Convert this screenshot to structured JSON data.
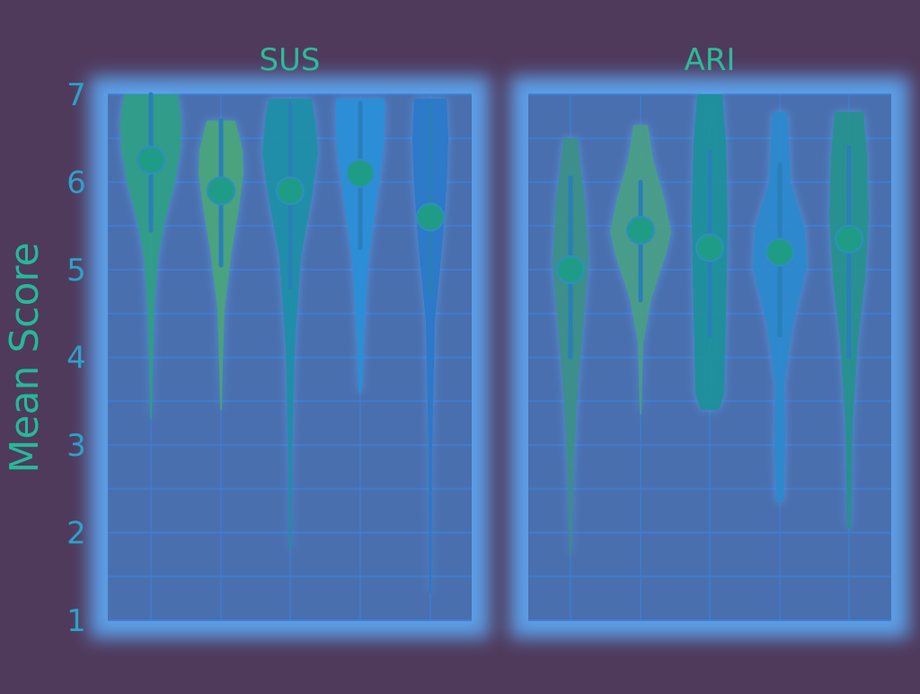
{
  "colors": {
    "background": "#4f3a5c",
    "panel": "#4a6fae",
    "glow": "#5fb0ff",
    "grid": "#3e7fd6",
    "text": "#2fa0c8",
    "title_text": "#2dba9a",
    "ylabel_text": "#26b89a",
    "violin_fills": [
      "#2f9d86",
      "#4aa37a",
      "#1f8ea6",
      "#2a8ed6",
      "#2b78c9",
      "#3b8f86",
      "#4a9d86",
      "#1d8f9a",
      "#2c88cc",
      "#27908e"
    ],
    "median_dot": "#1f9c86"
  },
  "chart_data": {
    "type": "violin",
    "ylabel": "Mean Score",
    "ylim": [
      1,
      7
    ],
    "yticks": [
      1,
      2,
      3,
      4,
      5,
      6,
      7
    ],
    "grid": true,
    "panels": [
      {
        "title": "SUS",
        "violins": [
          {
            "min": 3.3,
            "max": 7.0,
            "q1": 5.45,
            "q3": 7.0,
            "median": 6.25
          },
          {
            "min": 3.4,
            "max": 6.7,
            "q1": 5.05,
            "q3": 6.7,
            "median": 5.9
          },
          {
            "min": 1.8,
            "max": 6.95,
            "q1": 4.8,
            "q3": 6.9,
            "median": 5.9
          },
          {
            "min": 3.6,
            "max": 6.95,
            "q1": 5.25,
            "q3": 6.9,
            "median": 6.1
          },
          {
            "min": 1.3,
            "max": 6.95,
            "q1": 4.7,
            "q3": 6.9,
            "median": 5.6
          }
        ]
      },
      {
        "title": "ARI",
        "violins": [
          {
            "min": 1.75,
            "max": 6.5,
            "q1": 4.0,
            "q3": 6.05,
            "median": 5.0
          },
          {
            "min": 3.35,
            "max": 6.65,
            "q1": 4.65,
            "q3": 6.0,
            "median": 5.45
          },
          {
            "min": 3.4,
            "max": 7.0,
            "q1": 4.25,
            "q3": 6.35,
            "median": 5.25
          },
          {
            "min": 2.35,
            "max": 6.8,
            "q1": 4.25,
            "q3": 6.2,
            "median": 5.2
          },
          {
            "min": 2.05,
            "max": 6.8,
            "q1": 4.0,
            "q3": 6.4,
            "median": 5.35
          }
        ]
      }
    ]
  }
}
